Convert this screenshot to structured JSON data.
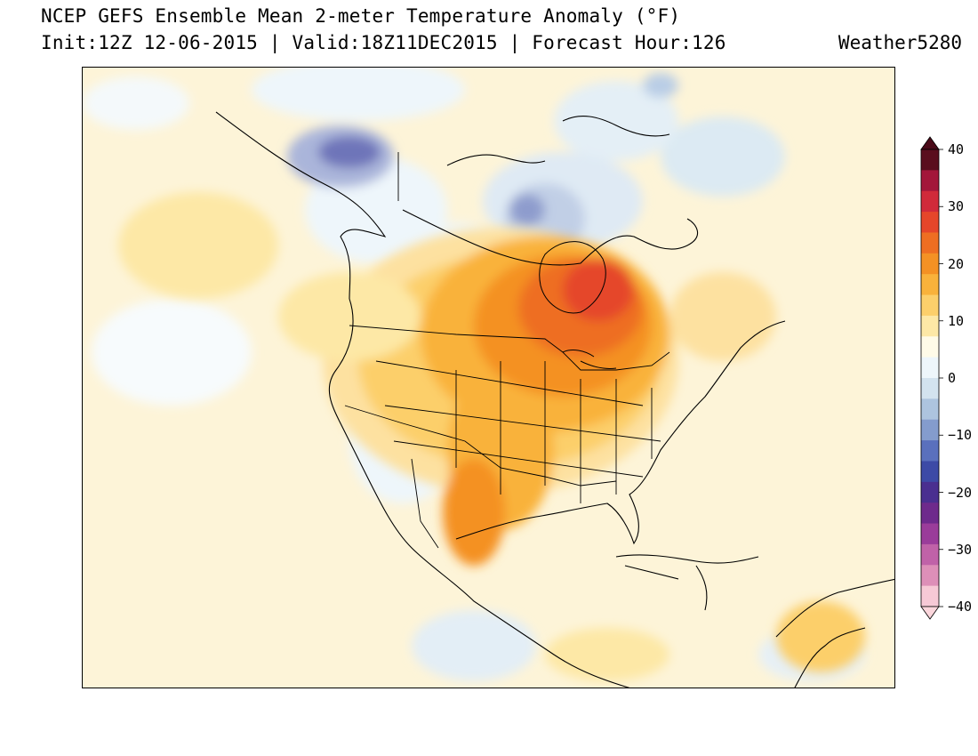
{
  "header": {
    "title": "NCEP GEFS Ensemble Mean 2-meter Temperature Anomaly (°F)",
    "subtitle": "Init:12Z 12-06-2015 | Valid:18Z11DEC2015 | Forecast Hour:126",
    "credit": "Weather5280"
  },
  "colorbar": {
    "min": -40,
    "max": 40,
    "step": 5,
    "tick_labels": [
      "40",
      "30",
      "20",
      "10",
      "0",
      "−10",
      "−20",
      "−30",
      "−40"
    ],
    "colors": [
      "#f6c9d6",
      "#dd8fb8",
      "#c062a8",
      "#9a3c9a",
      "#6e2a8c",
      "#4a2f90",
      "#3d4aa6",
      "#5a70bd",
      "#849ccd",
      "#adc4df",
      "#d3e3ef",
      "#eef6fb",
      "#fffbe8",
      "#fde8a6",
      "#fccf6b",
      "#f9b23b",
      "#f49124",
      "#ee6e22",
      "#e5462a",
      "#d12a3a",
      "#a3163a",
      "#5a0e1e"
    ],
    "arrow_top_color": "#4a0a18",
    "arrow_bottom_color": "#fbd6dc"
  }
}
